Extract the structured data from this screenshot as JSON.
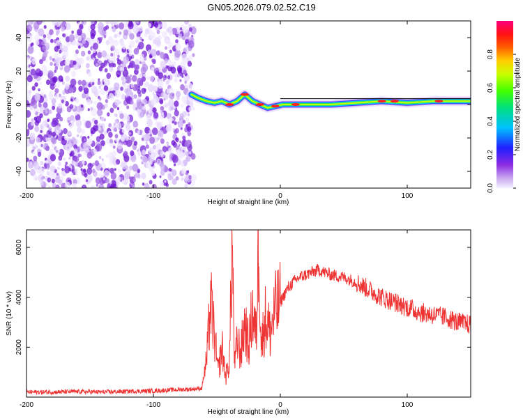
{
  "title": "GN05.2026.079.02.52.C19",
  "chart_data": [
    {
      "type": "heatmap",
      "title": "GN05.2026.079.02.52.C19",
      "xlabel": "Height of straight line (km)",
      "ylabel": "Frequency (Hz)",
      "xlim": [
        -200,
        150
      ],
      "ylim": [
        -50,
        50
      ],
      "xticks": [
        "-200",
        "-100",
        "0",
        "100"
      ],
      "xtick_values": [
        -200,
        -100,
        0,
        100
      ],
      "yticks": [
        "-40",
        "-20",
        "0",
        "20",
        "40"
      ],
      "ytick_values": [
        -40,
        -20,
        0,
        20,
        40
      ],
      "noise_region_x": [
        -200,
        -68
      ],
      "signal_region_x": [
        -70,
        150
      ],
      "signal_track": [
        {
          "x": -70,
          "f": 6
        },
        {
          "x": -65,
          "f": 4
        },
        {
          "x": -58,
          "f": 2
        },
        {
          "x": -52,
          "f": 1
        },
        {
          "x": -46,
          "f": 2
        },
        {
          "x": -40,
          "f": 0
        },
        {
          "x": -34,
          "f": 2
        },
        {
          "x": -28,
          "f": 6
        },
        {
          "x": -22,
          "f": 2
        },
        {
          "x": -16,
          "f": 0
        },
        {
          "x": -10,
          "f": -2
        },
        {
          "x": -4,
          "f": -1
        },
        {
          "x": 2,
          "f": 0
        },
        {
          "x": 10,
          "f": 0
        },
        {
          "x": 20,
          "f": 0
        },
        {
          "x": 40,
          "f": 0
        },
        {
          "x": 60,
          "f": 1
        },
        {
          "x": 80,
          "f": 2
        },
        {
          "x": 100,
          "f": 1
        },
        {
          "x": 120,
          "f": 2
        },
        {
          "x": 150,
          "f": 2
        }
      ],
      "colorbar": {
        "label": "Normalized spectral amplitude",
        "ticks": [
          "0.0",
          "0.2",
          "0.4",
          "0.6",
          "0.8"
        ],
        "tick_values": [
          0.0,
          0.2,
          0.4,
          0.6,
          0.8
        ],
        "range": [
          0,
          1
        ]
      }
    },
    {
      "type": "line",
      "xlabel": "Height of straight line (km)",
      "ylabel": "SNR (10 * v/v)",
      "xlim": [
        -200,
        150
      ],
      "ylim": [
        0,
        6700
      ],
      "xticks": [
        "-200",
        "-100",
        "0",
        "100"
      ],
      "xtick_values": [
        -200,
        -100,
        0,
        100
      ],
      "yticks": [
        "2000",
        "4000",
        "6000"
      ],
      "ytick_values": [
        2000,
        4000,
        6000
      ],
      "color": "#ee3333",
      "series": [
        {
          "name": "SNR",
          "x": [
            -200,
            -180,
            -160,
            -140,
            -120,
            -100,
            -80,
            -70,
            -62,
            -58,
            -55,
            -52,
            -49,
            -46,
            -43,
            -40,
            -38,
            -36,
            -34,
            -31,
            -28,
            -25,
            -22,
            -19,
            -17,
            -15,
            -12,
            -8,
            -4,
            0,
            5,
            10,
            15,
            20,
            25,
            30,
            35,
            40,
            50,
            60,
            70,
            80,
            90,
            100,
            110,
            120,
            130,
            140,
            150
          ],
          "y": [
            200,
            200,
            220,
            200,
            230,
            250,
            300,
            320,
            350,
            1500,
            3800,
            2500,
            1000,
            2000,
            800,
            1500,
            6300,
            1200,
            2200,
            1800,
            3000,
            2000,
            3500,
            2400,
            6600,
            2000,
            3200,
            2600,
            3500,
            3800,
            4300,
            4600,
            4800,
            4900,
            5000,
            5100,
            5000,
            4900,
            4800,
            4600,
            4300,
            4000,
            3800,
            3600,
            3400,
            3300,
            3200,
            3000,
            2900
          ]
        }
      ]
    }
  ]
}
